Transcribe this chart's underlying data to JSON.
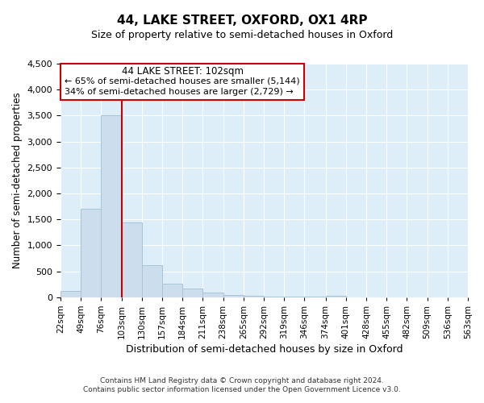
{
  "title": "44, LAKE STREET, OXFORD, OX1 4RP",
  "subtitle": "Size of property relative to semi-detached houses in Oxford",
  "xlabel": "Distribution of semi-detached houses by size in Oxford",
  "ylabel": "Number of semi-detached properties",
  "bar_color": "#ccdded",
  "bar_edge_color": "#a8c4d8",
  "plot_bg_color": "#ddeef8",
  "grid_color": "#ffffff",
  "bin_edges": [
    22,
    49,
    76,
    103,
    130,
    157,
    184,
    211,
    238,
    265,
    292,
    319,
    346,
    374,
    401,
    428,
    455,
    482,
    509,
    536,
    563
  ],
  "bin_labels": [
    "22sqm",
    "49sqm",
    "76sqm",
    "103sqm",
    "130sqm",
    "157sqm",
    "184sqm",
    "211sqm",
    "238sqm",
    "265sqm",
    "292sqm",
    "319sqm",
    "346sqm",
    "374sqm",
    "401sqm",
    "428sqm",
    "455sqm",
    "482sqm",
    "509sqm",
    "536sqm",
    "563sqm"
  ],
  "bar_heights": [
    130,
    1700,
    3500,
    1440,
    620,
    270,
    165,
    95,
    50,
    25,
    15,
    10,
    8,
    35,
    0,
    0,
    0,
    0,
    0,
    0
  ],
  "ylim": [
    0,
    4500
  ],
  "yticks": [
    0,
    500,
    1000,
    1500,
    2000,
    2500,
    3000,
    3500,
    4000,
    4500
  ],
  "property_line_x": 103,
  "property_line_color": "#cc0000",
  "annotation_title": "44 LAKE STREET: 102sqm",
  "annotation_line1": "← 65% of semi-detached houses are smaller (5,144)",
  "annotation_line2": "34% of semi-detached houses are larger (2,729) →",
  "annotation_box_color": "#ffffff",
  "annotation_box_edge": "#cc0000",
  "footer_line1": "Contains HM Land Registry data © Crown copyright and database right 2024.",
  "footer_line2": "Contains public sector information licensed under the Open Government Licence v3.0.",
  "background_color": "#ffffff"
}
